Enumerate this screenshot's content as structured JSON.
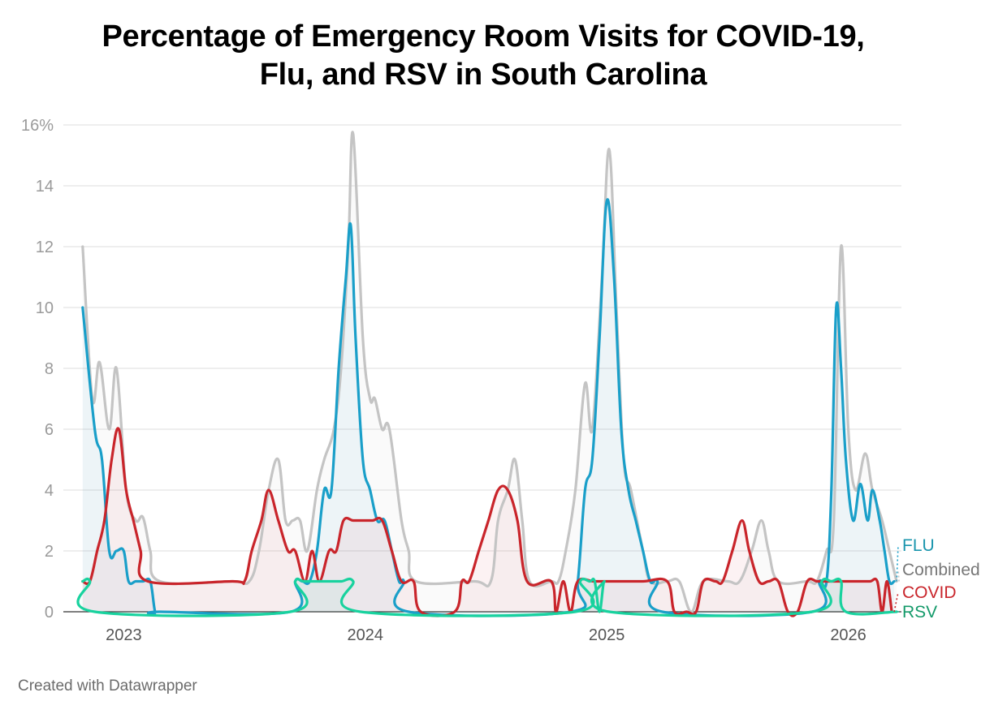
{
  "title_line1": "Percentage of Emergency Room Visits for COVID-19,",
  "title_line2": "Flu, and RSV in South Carolina",
  "credit": "Created with Datawrapper",
  "colors": {
    "flu": "#1a9fc9",
    "combined": "#c4c4c4",
    "covid": "#c9252b",
    "rsv": "#18d29e",
    "flu_label": "#1a95ad",
    "combined_label": "#777777",
    "covid_label": "#c9252b",
    "rsv_label": "#149a6a",
    "grid": "#dddddd"
  },
  "chart_data": {
    "type": "line",
    "ylim": [
      0,
      16
    ],
    "y_ticks": [
      0,
      2,
      4,
      6,
      8,
      10,
      12,
      14,
      16
    ],
    "y_tick_labels": [
      "0",
      "2",
      "4",
      "6",
      "8",
      "10",
      "12",
      "14",
      "16%"
    ],
    "x_ticks": [
      2023,
      2024,
      2025,
      2026
    ],
    "x_tick_labels": [
      "2023",
      "2024",
      "2025",
      "2026"
    ],
    "xlim": [
      2022.8,
      2026.27
    ],
    "grid": true,
    "legend": "inline labels at right end of lines",
    "series": [
      {
        "name": "Combined",
        "color_key": "combined",
        "points": [
          [
            2022.88,
            12
          ],
          [
            2022.92,
            7
          ],
          [
            2022.95,
            8.2
          ],
          [
            2022.99,
            6
          ],
          [
            2023.02,
            8
          ],
          [
            2023.06,
            4
          ],
          [
            2023.1,
            3
          ],
          [
            2023.13,
            3.1
          ],
          [
            2023.16,
            2
          ],
          [
            2023.2,
            1
          ],
          [
            2023.5,
            1
          ],
          [
            2023.57,
            1
          ],
          [
            2023.61,
            2
          ],
          [
            2023.65,
            4
          ],
          [
            2023.69,
            5
          ],
          [
            2023.72,
            3
          ],
          [
            2023.75,
            3
          ],
          [
            2023.78,
            3
          ],
          [
            2023.81,
            2
          ],
          [
            2023.85,
            4
          ],
          [
            2023.88,
            5
          ],
          [
            2023.92,
            6
          ],
          [
            2023.95,
            8
          ],
          [
            2023.98,
            12
          ],
          [
            2024.0,
            15.7
          ],
          [
            2024.04,
            9
          ],
          [
            2024.07,
            7
          ],
          [
            2024.09,
            7
          ],
          [
            2024.12,
            6
          ],
          [
            2024.15,
            6
          ],
          [
            2024.2,
            3
          ],
          [
            2024.23,
            2
          ],
          [
            2024.26,
            1
          ],
          [
            2024.5,
            1
          ],
          [
            2024.57,
            1
          ],
          [
            2024.6,
            3
          ],
          [
            2024.64,
            4
          ],
          [
            2024.67,
            5
          ],
          [
            2024.7,
            3
          ],
          [
            2024.73,
            1
          ],
          [
            2024.82,
            1
          ],
          [
            2024.85,
            1
          ],
          [
            2024.88,
            2
          ],
          [
            2024.92,
            4
          ],
          [
            2024.96,
            7.5
          ],
          [
            2024.99,
            6
          ],
          [
            2025.03,
            11
          ],
          [
            2025.06,
            15.2
          ],
          [
            2025.09,
            10
          ],
          [
            2025.12,
            5
          ],
          [
            2025.15,
            4
          ],
          [
            2025.2,
            2
          ],
          [
            2025.23,
            1
          ],
          [
            2025.3,
            1
          ],
          [
            2025.35,
            1
          ],
          [
            2025.4,
            0
          ],
          [
            2025.45,
            1
          ],
          [
            2025.55,
            1
          ],
          [
            2025.6,
            1
          ],
          [
            2025.65,
            2
          ],
          [
            2025.69,
            3
          ],
          [
            2025.72,
            2
          ],
          [
            2025.76,
            1
          ],
          [
            2025.88,
            1
          ],
          [
            2025.92,
            1
          ],
          [
            2025.96,
            2
          ],
          [
            2025.99,
            3
          ],
          [
            2026.02,
            12
          ],
          [
            2026.05,
            6
          ],
          [
            2026.08,
            4
          ],
          [
            2026.12,
            5.2
          ],
          [
            2026.15,
            4
          ],
          [
            2026.19,
            3
          ],
          [
            2026.22,
            2
          ],
          [
            2026.25,
            1
          ]
        ]
      },
      {
        "name": "FLU",
        "color_key": "flu",
        "points": [
          [
            2022.88,
            10
          ],
          [
            2022.93,
            6
          ],
          [
            2022.96,
            5
          ],
          [
            2022.99,
            2
          ],
          [
            2023.02,
            2
          ],
          [
            2023.05,
            2
          ],
          [
            2023.07,
            1
          ],
          [
            2023.1,
            1
          ],
          [
            2023.13,
            1
          ],
          [
            2023.16,
            1
          ],
          [
            2023.18,
            0
          ],
          [
            2023.2,
            0
          ],
          [
            2023.74,
            0
          ],
          [
            2023.76,
            1
          ],
          [
            2023.79,
            1
          ],
          [
            2023.82,
            1
          ],
          [
            2023.85,
            2
          ],
          [
            2023.88,
            4
          ],
          [
            2023.91,
            4
          ],
          [
            2023.94,
            8
          ],
          [
            2023.97,
            11
          ],
          [
            2023.99,
            12.7
          ],
          [
            2024.01,
            9
          ],
          [
            2024.04,
            5
          ],
          [
            2024.07,
            4
          ],
          [
            2024.1,
            3
          ],
          [
            2024.13,
            3
          ],
          [
            2024.16,
            2
          ],
          [
            2024.19,
            1
          ],
          [
            2024.21,
            1
          ],
          [
            2024.23,
            0
          ],
          [
            2024.9,
            0
          ],
          [
            2024.93,
            1
          ],
          [
            2024.96,
            4
          ],
          [
            2024.99,
            5
          ],
          [
            2025.02,
            9
          ],
          [
            2025.05,
            13.5
          ],
          [
            2025.08,
            11
          ],
          [
            2025.11,
            6
          ],
          [
            2025.14,
            4
          ],
          [
            2025.17,
            3
          ],
          [
            2025.2,
            2
          ],
          [
            2025.23,
            1
          ],
          [
            2025.26,
            1
          ],
          [
            2025.28,
            0
          ],
          [
            2025.9,
            0
          ],
          [
            2025.93,
            1
          ],
          [
            2025.96,
            1
          ],
          [
            2025.98,
            4
          ],
          [
            2026.0,
            10
          ],
          [
            2026.02,
            8
          ],
          [
            2026.04,
            5
          ],
          [
            2026.07,
            3
          ],
          [
            2026.1,
            4.2
          ],
          [
            2026.13,
            3
          ],
          [
            2026.15,
            4
          ],
          [
            2026.18,
            3
          ],
          [
            2026.2,
            2
          ],
          [
            2026.22,
            1
          ],
          [
            2026.24,
            1
          ]
        ]
      },
      {
        "name": "COVID",
        "color_key": "covid",
        "points": [
          [
            2022.88,
            1
          ],
          [
            2022.91,
            1
          ],
          [
            2022.94,
            2
          ],
          [
            2022.97,
            3
          ],
          [
            2023.0,
            5
          ],
          [
            2023.03,
            6
          ],
          [
            2023.06,
            4
          ],
          [
            2023.09,
            3
          ],
          [
            2023.12,
            2
          ],
          [
            2023.15,
            1
          ],
          [
            2023.5,
            1
          ],
          [
            2023.55,
            1
          ],
          [
            2023.58,
            2
          ],
          [
            2023.62,
            3
          ],
          [
            2023.65,
            4
          ],
          [
            2023.69,
            3
          ],
          [
            2023.73,
            2
          ],
          [
            2023.76,
            2
          ],
          [
            2023.8,
            1
          ],
          [
            2023.83,
            2
          ],
          [
            2023.86,
            1
          ],
          [
            2023.9,
            2
          ],
          [
            2023.93,
            2
          ],
          [
            2023.96,
            3
          ],
          [
            2024.0,
            3
          ],
          [
            2024.04,
            3
          ],
          [
            2024.08,
            3
          ],
          [
            2024.12,
            3
          ],
          [
            2024.16,
            2
          ],
          [
            2024.2,
            1
          ],
          [
            2024.25,
            1
          ],
          [
            2024.28,
            0
          ],
          [
            2024.42,
            0
          ],
          [
            2024.45,
            1
          ],
          [
            2024.48,
            1
          ],
          [
            2024.52,
            2
          ],
          [
            2024.56,
            3
          ],
          [
            2024.6,
            4
          ],
          [
            2024.64,
            4
          ],
          [
            2024.68,
            3
          ],
          [
            2024.72,
            1
          ],
          [
            2024.82,
            1
          ],
          [
            2024.84,
            0
          ],
          [
            2024.87,
            1
          ],
          [
            2024.9,
            0
          ],
          [
            2024.93,
            1
          ],
          [
            2025.0,
            1
          ],
          [
            2025.1,
            1
          ],
          [
            2025.2,
            1
          ],
          [
            2025.3,
            1
          ],
          [
            2025.33,
            0
          ],
          [
            2025.38,
            0
          ],
          [
            2025.42,
            0
          ],
          [
            2025.45,
            1
          ],
          [
            2025.5,
            1
          ],
          [
            2025.53,
            1
          ],
          [
            2025.57,
            2
          ],
          [
            2025.61,
            3
          ],
          [
            2025.64,
            2
          ],
          [
            2025.68,
            1
          ],
          [
            2025.72,
            1
          ],
          [
            2025.76,
            1
          ],
          [
            2025.8,
            0
          ],
          [
            2025.84,
            0
          ],
          [
            2025.88,
            1
          ],
          [
            2025.92,
            1
          ],
          [
            2025.95,
            1
          ],
          [
            2025.98,
            1
          ],
          [
            2026.02,
            1
          ],
          [
            2026.06,
            1
          ],
          [
            2026.1,
            1
          ],
          [
            2026.14,
            1
          ],
          [
            2026.17,
            1
          ],
          [
            2026.19,
            0
          ],
          [
            2026.21,
            1
          ],
          [
            2026.23,
            0
          ]
        ]
      },
      {
        "name": "RSV",
        "color_key": "rsv",
        "points": [
          [
            2022.88,
            1
          ],
          [
            2022.91,
            1
          ],
          [
            2022.93,
            0
          ],
          [
            2023.74,
            0
          ],
          [
            2023.76,
            1
          ],
          [
            2023.8,
            1
          ],
          [
            2023.9,
            1
          ],
          [
            2023.95,
            1
          ],
          [
            2024.0,
            1
          ],
          [
            2024.03,
            0
          ],
          [
            2024.92,
            0
          ],
          [
            2024.94,
            1
          ],
          [
            2024.98,
            1
          ],
          [
            2025.0,
            1
          ],
          [
            2025.02,
            0
          ],
          [
            2025.04,
            1
          ],
          [
            2025.06,
            0
          ],
          [
            2025.9,
            0
          ],
          [
            2025.94,
            1
          ],
          [
            2025.98,
            1
          ],
          [
            2026.02,
            1
          ],
          [
            2026.04,
            0
          ],
          [
            2026.25,
            0
          ]
        ]
      }
    ]
  }
}
